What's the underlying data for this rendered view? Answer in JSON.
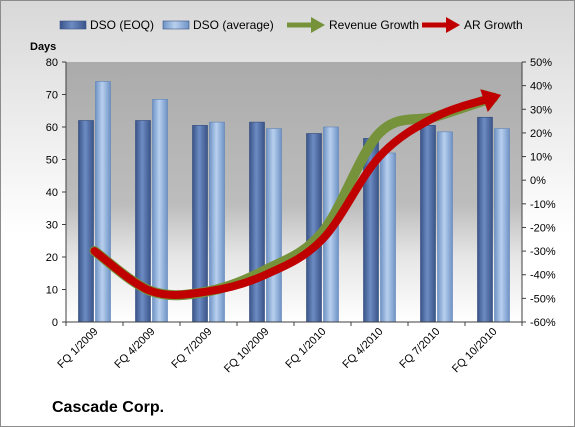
{
  "company": "Cascade Corp.",
  "y_left_label": "Days",
  "chart_data": {
    "type": "bar",
    "categories": [
      "FQ 1/2009",
      "FQ 4/2009",
      "FQ 7/2009",
      "FQ 10/2009",
      "FQ 1/2010",
      "FQ 4/2010",
      "FQ 7/2010",
      "FQ 10/2010"
    ],
    "series": [
      {
        "name": "DSO (EOQ)",
        "type": "bar",
        "axis": "left",
        "values": [
          62,
          62,
          60.5,
          61.5,
          58,
          56.5,
          60.5,
          63
        ],
        "color": "#4f6da8"
      },
      {
        "name": "DSO (average)",
        "type": "bar",
        "axis": "left",
        "values": [
          74,
          68.5,
          61.5,
          59.5,
          60,
          52,
          58.5,
          59.5
        ],
        "color": "#8fb1dc"
      },
      {
        "name": "Revenue Growth",
        "type": "line",
        "axis": "right",
        "values": [
          -30,
          -47,
          -47,
          -38,
          -22,
          20,
          27,
          35
        ],
        "color": "#76933c"
      },
      {
        "name": "AR Growth",
        "type": "line",
        "axis": "right",
        "values": [
          -30,
          -47,
          -47,
          -40,
          -25,
          10,
          27,
          35
        ],
        "color": "#c00000"
      }
    ],
    "ylim_left": [
      0,
      80
    ],
    "ylim_right": [
      -60,
      50
    ],
    "y_left_ticks": [
      "0",
      "10",
      "20",
      "30",
      "40",
      "50",
      "60",
      "70",
      "80"
    ],
    "y_right_ticks": [
      "-60%",
      "-50%",
      "-40%",
      "-30%",
      "-20%",
      "-10%",
      "0%",
      "10%",
      "20%",
      "30%",
      "40%",
      "50%"
    ],
    "legend_position": "top",
    "grid": false
  }
}
